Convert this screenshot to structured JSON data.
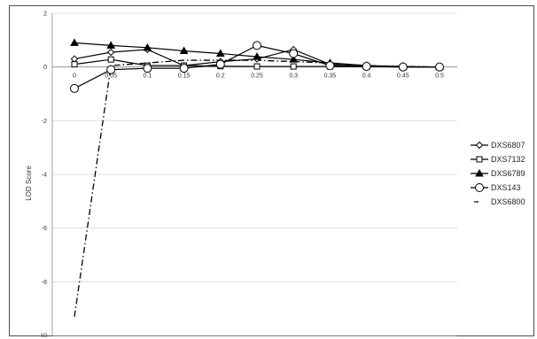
{
  "chart_data": {
    "type": "line",
    "title": "",
    "xlabel": "",
    "ylabel": "LOD Score",
    "x": [
      0,
      0.05,
      0.1,
      0.15,
      0.2,
      0.25,
      0.3,
      0.35,
      0.4,
      0.45,
      0.5
    ],
    "x_tick_labels": [
      "0",
      "0.05",
      "0.1",
      "0.15",
      "0.2",
      "0.25",
      "0.3",
      "0.35",
      "0.4",
      "0.45",
      "0.5"
    ],
    "ylim": [
      -10,
      2
    ],
    "y_ticks": [
      2,
      0,
      -2,
      -4,
      -6,
      -8,
      -10
    ],
    "y_tick_labels": [
      "2",
      "0",
      "-2",
      "-4",
      "-6",
      "-8",
      "-10"
    ],
    "grid": true,
    "legend_position": "right",
    "series": [
      {
        "name": "DXS6807",
        "marker": "diamond",
        "line": "solid",
        "values": [
          0.3,
          0.55,
          0.65,
          0.05,
          0.2,
          0.3,
          0.65,
          0.1,
          0.05,
          0.0,
          0.0
        ]
      },
      {
        "name": "DXS7132",
        "marker": "square",
        "line": "solid",
        "values": [
          0.1,
          0.28,
          0.05,
          0.05,
          0.03,
          0.02,
          0.02,
          0.02,
          0.01,
          0.0,
          0.0
        ]
      },
      {
        "name": "DXS6789",
        "marker": "triangle",
        "line": "solid",
        "values": [
          0.9,
          0.8,
          0.72,
          0.6,
          0.5,
          0.38,
          0.28,
          0.15,
          0.05,
          0.02,
          0.0
        ]
      },
      {
        "name": "DXS143",
        "marker": "circle",
        "line": "solid",
        "values": [
          -0.8,
          -0.1,
          -0.05,
          -0.05,
          0.1,
          0.8,
          0.5,
          0.05,
          0.02,
          0.0,
          0.0
        ]
      },
      {
        "name": "DXS6800",
        "marker": "none",
        "line": "dash-dot",
        "values": [
          -9.3,
          0.05,
          0.15,
          0.25,
          0.25,
          0.25,
          0.2,
          0.15,
          0.05,
          0.02,
          0.0
        ]
      }
    ]
  }
}
